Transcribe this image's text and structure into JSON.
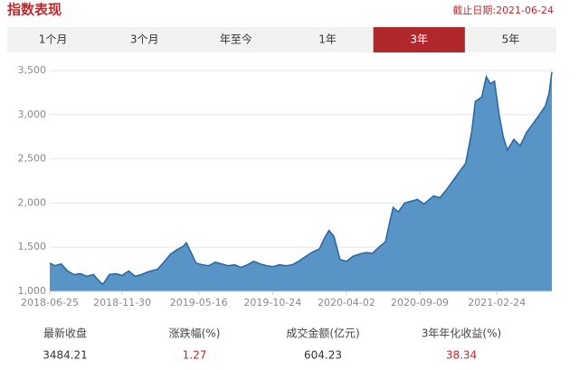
{
  "header": {
    "title": "指数表现",
    "date": "截止日期:2021-06-24"
  },
  "tabs": {
    "items": [
      "1个月",
      "3个月",
      "年至今",
      "1年",
      "3年",
      "5年"
    ],
    "selected": 4
  },
  "chart_data": {
    "type": "area",
    "x": [
      "2018-06-25",
      "2018-07-06",
      "2018-07-20",
      "2018-08-03",
      "2018-08-17",
      "2018-08-31",
      "2018-09-14",
      "2018-09-28",
      "2018-10-12",
      "2018-10-19",
      "2018-11-02",
      "2018-11-16",
      "2018-11-30",
      "2018-12-14",
      "2018-12-28",
      "2019-01-11",
      "2019-01-25",
      "2019-02-15",
      "2019-03-01",
      "2019-03-15",
      "2019-03-29",
      "2019-04-12",
      "2019-04-19",
      "2019-04-30",
      "2019-05-10",
      "2019-05-24",
      "2019-06-07",
      "2019-06-21",
      "2019-07-05",
      "2019-07-19",
      "2019-08-02",
      "2019-08-16",
      "2019-08-30",
      "2019-09-13",
      "2019-09-27",
      "2019-10-11",
      "2019-10-25",
      "2019-11-08",
      "2019-11-22",
      "2019-12-06",
      "2019-12-20",
      "2020-01-03",
      "2020-01-17",
      "2020-02-03",
      "2020-02-14",
      "2020-02-24",
      "2020-03-06",
      "2020-03-19",
      "2020-04-02",
      "2020-04-17",
      "2020-04-30",
      "2020-05-15",
      "2020-05-29",
      "2020-06-12",
      "2020-06-26",
      "2020-07-06",
      "2020-07-13",
      "2020-07-24",
      "2020-08-07",
      "2020-08-21",
      "2020-09-04",
      "2020-09-18",
      "2020-10-09",
      "2020-10-23",
      "2020-11-06",
      "2020-11-20",
      "2020-12-04",
      "2020-12-18",
      "2020-12-31",
      "2021-01-08",
      "2021-01-22",
      "2021-02-01",
      "2021-02-10",
      "2021-02-19",
      "2021-03-01",
      "2021-03-10",
      "2021-03-19",
      "2021-04-02",
      "2021-04-16",
      "2021-04-30",
      "2021-05-14",
      "2021-05-28",
      "2021-06-10",
      "2021-06-18",
      "2021-06-24"
    ],
    "series": [
      {
        "color": "#4f8ec2",
        "values": [
          1320,
          1290,
          1310,
          1230,
          1190,
          1200,
          1170,
          1190,
          1110,
          1080,
          1190,
          1200,
          1180,
          1230,
          1170,
          1190,
          1220,
          1250,
          1330,
          1420,
          1470,
          1510,
          1550,
          1430,
          1320,
          1300,
          1290,
          1330,
          1310,
          1290,
          1300,
          1270,
          1300,
          1340,
          1310,
          1290,
          1280,
          1300,
          1290,
          1300,
          1340,
          1390,
          1440,
          1480,
          1600,
          1690,
          1620,
          1360,
          1340,
          1400,
          1420,
          1440,
          1430,
          1500,
          1560,
          1800,
          1950,
          1900,
          2000,
          2020,
          2040,
          1990,
          2080,
          2060,
          2150,
          2250,
          2350,
          2450,
          2800,
          3150,
          3200,
          3430,
          3350,
          3380,
          3000,
          2750,
          2600,
          2720,
          2650,
          2800,
          2900,
          3000,
          3100,
          3250,
          3484.21
        ]
      }
    ],
    "xlim": [
      "2018-06-25",
      "2021-06-24"
    ],
    "xticks": [
      "2018-06-25",
      "2018-11-30",
      "2019-05-16",
      "2019-10-24",
      "2020-04-02",
      "2020-09-09",
      "2021-02-24"
    ],
    "ylim": [
      1000,
      3500
    ],
    "yticks": [
      {
        "value": 1000,
        "label": "1,000"
      },
      {
        "value": 1500,
        "label": "1,500"
      },
      {
        "value": 2000,
        "label": "2,000"
      },
      {
        "value": 2500,
        "label": "2,500"
      },
      {
        "value": 3000,
        "label": "3,000"
      },
      {
        "value": 3500,
        "label": "3,500"
      }
    ],
    "grid": true
  },
  "stats": [
    {
      "label": "最新收盘",
      "value": "3484.21",
      "color": "#333333"
    },
    {
      "label": "涨跌幅(%)",
      "value": "1.27",
      "color": "#c0272d"
    },
    {
      "label": "成交金额(亿元)",
      "value": "604.23",
      "color": "#333333"
    },
    {
      "label": "3年年化收益(%)",
      "value": "38.34",
      "color": "#c0272d"
    }
  ]
}
